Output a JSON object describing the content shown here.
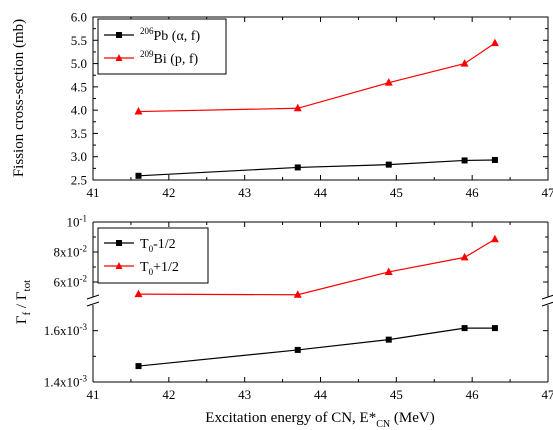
{
  "chart_data": [
    {
      "type": "line",
      "ylabel": "Fission cross-section (mb)",
      "xlim": [
        41,
        47
      ],
      "ylim": [
        2.5,
        6.0
      ],
      "x_ticks": [
        "41",
        "42",
        "43",
        "44",
        "45",
        "46",
        "47"
      ],
      "y_ticks": [
        "2.5",
        "3.0",
        "3.5",
        "4.0",
        "4.5",
        "5.0",
        "5.5",
        "6.0"
      ],
      "legend_position": "top-left",
      "series": [
        {
          "name_parts": {
            "sup": "206",
            "base": "Pb (α, f)"
          },
          "color": "#000000",
          "marker": "square",
          "x": [
            41.6,
            43.7,
            44.9,
            45.9,
            46.3
          ],
          "y": [
            2.59,
            2.77,
            2.83,
            2.92,
            2.93
          ]
        },
        {
          "name_parts": {
            "sup": "209",
            "base": "Bi (p, f)"
          },
          "color": "#ff0000",
          "marker": "triangle",
          "x": [
            41.6,
            43.7,
            44.9,
            45.9,
            46.3
          ],
          "y": [
            3.97,
            4.04,
            4.59,
            5.0,
            5.44
          ]
        }
      ]
    },
    {
      "type": "line",
      "ylabel_parts": {
        "g1": "Γ",
        "s1": "f",
        "mid": " / Γ",
        "s2": "tot"
      },
      "xlabel_parts": {
        "base": "Excitation energy of CN, E*",
        "sub": "CN",
        "unit": " (MeV)"
      },
      "xlim": [
        41,
        47
      ],
      "x_ticks": [
        "41",
        "42",
        "43",
        "44",
        "45",
        "46",
        "47"
      ],
      "broken_y_axis": true,
      "upper_ylim": [
        0.05,
        0.1
      ],
      "lower_ylim": [
        0.0014,
        0.0017
      ],
      "y_ticks": [
        {
          "mant": "10",
          "exp": "-1",
          "value": 0.1
        },
        {
          "mant": "8x10",
          "exp": "-2",
          "value": 0.08
        },
        {
          "mant": "6x10",
          "exp": "-2",
          "value": 0.06
        },
        {
          "mant": "1.6x10",
          "exp": "-3",
          "value": 0.0016
        },
        {
          "mant": "1.4x10",
          "exp": "-3",
          "value": 0.0014
        }
      ],
      "legend_position": "top-left",
      "series": [
        {
          "name_parts": {
            "base": "T",
            "sub": "0",
            "rest": "-1/2"
          },
          "color": "#000000",
          "marker": "square",
          "x": [
            41.6,
            43.7,
            44.9,
            45.9,
            46.3
          ],
          "y": [
            0.001462,
            0.001525,
            0.001565,
            0.00161,
            0.00161
          ]
        },
        {
          "name_parts": {
            "base": "T",
            "sub": "0",
            "rest": "+1/2"
          },
          "color": "#ff0000",
          "marker": "triangle",
          "x": [
            41.6,
            43.7,
            44.9,
            45.9,
            46.3
          ],
          "y": [
            0.0519,
            0.0515,
            0.0667,
            0.0764,
            0.0885
          ]
        }
      ]
    }
  ]
}
